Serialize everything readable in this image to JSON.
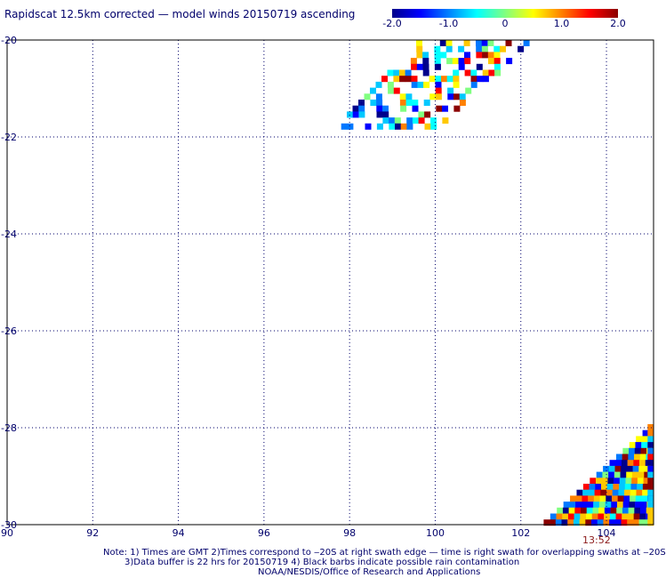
{
  "title": "Rapidscat 12.5km corrected — model winds 20150719 ascending",
  "colorbar": {
    "ticks": [
      "-2.0",
      "-1.0",
      "0",
      "1.0",
      "2.0"
    ],
    "tick_values": [
      -2,
      -1,
      0,
      1,
      2
    ],
    "colors": [
      "#00008b",
      "#0000ff",
      "#0080ff",
      "#00ffff",
      "#80ff80",
      "#ffff00",
      "#ff8000",
      "#ff0000",
      "#8b0000"
    ]
  },
  "map": {
    "lon_labels": [
      "90",
      "92",
      "94",
      "96",
      "98",
      "100",
      "102",
      "104"
    ],
    "lat_labels": [
      "-20",
      "-22",
      "-24",
      "-26",
      "-28",
      "-30"
    ],
    "lon_range": [
      90,
      105.1
    ],
    "lat_range": [
      -20,
      -30
    ],
    "grid": "dotted"
  },
  "swath_time": "13:52",
  "notes": {
    "line1": "Note: 1) Times are GMT 2)Times correspond to ‒20S at right swath edge — time is right swath for overlapping swaths at ‒20S",
    "line2": "3)Data buffer is 22 hrs for 20150719 4) Black barbs indicate possible rain contamination",
    "line3": "NOAA/NESDIS/Office of Research and Applications"
  }
}
